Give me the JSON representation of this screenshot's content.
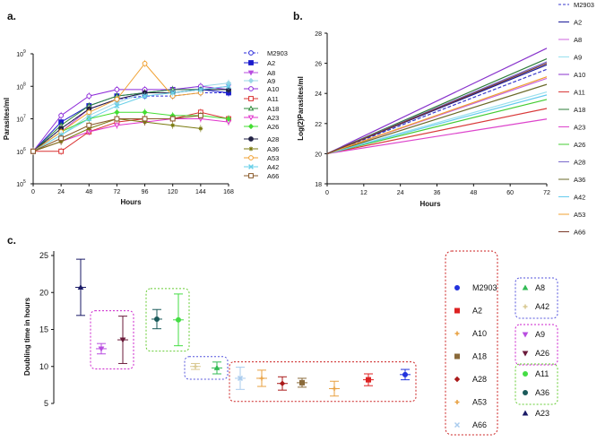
{
  "chart_data": [
    {
      "panel": "a.",
      "type": "line",
      "title": "",
      "xlabel": "Hours",
      "ylabel": "Parasites/ml",
      "x": [
        0,
        24,
        48,
        72,
        96,
        120,
        144,
        168
      ],
      "x_ticks": [
        "0",
        "24",
        "48",
        "72",
        "96",
        "120",
        "144",
        "168"
      ],
      "y_scale": "log10",
      "ylim": [
        5,
        9
      ],
      "y_ticks": [
        {
          "base": "10",
          "exp": "5",
          "v": 5
        },
        {
          "base": "10",
          "exp": "6",
          "v": 6
        },
        {
          "base": "10",
          "exp": "7",
          "v": 7
        },
        {
          "base": "10",
          "exp": "8",
          "v": 8
        },
        {
          "base": "10",
          "exp": "9",
          "v": 9
        }
      ],
      "series": [
        {
          "name": "M2903",
          "color": "#2b2bd9",
          "marker": "circle-open",
          "dashed": true,
          "values": [
            6.0,
            6.7,
            7.3,
            7.6,
            7.7,
            7.7,
            7.8,
            7.8
          ]
        },
        {
          "name": "A2",
          "color": "#1a1acc",
          "marker": "square",
          "values": [
            6.0,
            6.9,
            7.4,
            7.7,
            7.8,
            7.9,
            7.9,
            7.8
          ]
        },
        {
          "name": "A8",
          "color": "#b84de0",
          "marker": "triangle-down",
          "values": [
            6.0,
            6.6,
            7.3,
            7.6,
            7.8,
            7.9,
            7.9,
            8.0
          ]
        },
        {
          "name": "A9",
          "color": "#9ad7e6",
          "marker": "diamond",
          "values": [
            6.0,
            6.5,
            7.1,
            7.5,
            7.8,
            7.9,
            8.0,
            8.1
          ]
        },
        {
          "name": "A10",
          "color": "#8e2bd9",
          "marker": "circle-open",
          "values": [
            6.0,
            7.1,
            7.7,
            7.9,
            7.9,
            7.9,
            8.0,
            7.9
          ]
        },
        {
          "name": "A11",
          "color": "#d93030",
          "marker": "square-open",
          "values": [
            6.0,
            6.0,
            6.6,
            6.9,
            7.0,
            7.0,
            7.2,
            7.0
          ]
        },
        {
          "name": "A18",
          "color": "#2e8b3a",
          "marker": "triangle-open",
          "values": [
            6.0,
            6.8,
            7.4,
            7.7,
            7.8,
            7.9,
            7.9,
            7.9
          ]
        },
        {
          "name": "A23",
          "color": "#e033cc",
          "marker": "triangle-down-open",
          "values": [
            6.0,
            6.3,
            6.6,
            6.8,
            6.9,
            7.0,
            7.0,
            6.9
          ]
        },
        {
          "name": "A26",
          "color": "#44dd33",
          "marker": "diamond",
          "values": [
            6.0,
            6.6,
            7.0,
            7.2,
            7.2,
            7.1,
            7.1,
            7.0
          ]
        },
        {
          "name": "A28",
          "color": "#222244",
          "marker": "circle",
          "values": [
            6.0,
            6.7,
            7.3,
            7.6,
            7.8,
            7.8,
            7.9,
            7.9
          ]
        },
        {
          "name": "A36",
          "color": "#7a7a10",
          "marker": "star",
          "values": [
            6.0,
            6.3,
            6.7,
            7.0,
            6.9,
            6.8,
            6.7,
            null
          ]
        },
        {
          "name": "A53",
          "color": "#f0a030",
          "marker": "circle-open",
          "values": [
            6.0,
            6.6,
            7.2,
            7.6,
            8.7,
            7.7,
            7.8,
            null
          ]
        },
        {
          "name": "A42",
          "color": "#6ad0e8",
          "marker": "x",
          "values": [
            6.0,
            6.5,
            7.0,
            7.4,
            7.7,
            7.8,
            7.9,
            8.0
          ]
        },
        {
          "name": "A66",
          "color": "#8a5a2a",
          "marker": "square-open",
          "values": [
            6.0,
            6.4,
            6.8,
            7.0,
            7.0,
            7.0,
            7.1,
            null
          ]
        }
      ]
    },
    {
      "panel": "b.",
      "type": "line",
      "xlabel": "Hours",
      "ylabel": "Log(2)Parasites/ml",
      "xlim": [
        0,
        72
      ],
      "ylim": [
        18,
        28
      ],
      "x_ticks": [
        0,
        12,
        24,
        36,
        48,
        60,
        72
      ],
      "y_ticks": [
        18,
        20,
        22,
        24,
        26,
        28
      ],
      "series": [
        {
          "name": "M2903",
          "color": "#3a3acc",
          "dashed": true,
          "start": 20,
          "end": 25.6
        },
        {
          "name": "A2",
          "color": "#1a1a99",
          "start": 20,
          "end": 25.9
        },
        {
          "name": "A8",
          "color": "#cc66dd",
          "start": 20,
          "end": 25.0
        },
        {
          "name": "A9",
          "color": "#99e0ee",
          "start": 20,
          "end": 24.1
        },
        {
          "name": "A10",
          "color": "#8833cc",
          "start": 20,
          "end": 27.0
        },
        {
          "name": "A11",
          "color": "#d93a3a",
          "start": 20,
          "end": 23.0
        },
        {
          "name": "A18",
          "color": "#2e7d3a",
          "start": 20,
          "end": 26.3
        },
        {
          "name": "A23",
          "color": "#dd44cc",
          "start": 20,
          "end": 22.3
        },
        {
          "name": "A26",
          "color": "#44cc33",
          "start": 20,
          "end": 23.6
        },
        {
          "name": "A28",
          "color": "#7a6acc",
          "start": 20,
          "end": 26.1
        },
        {
          "name": "A36",
          "color": "#6a6a2a",
          "start": 20,
          "end": 24.6
        },
        {
          "name": "A42",
          "color": "#66ccee",
          "start": 20,
          "end": 23.9
        },
        {
          "name": "A53",
          "color": "#f0a030",
          "start": 20,
          "end": 25.1
        },
        {
          "name": "A66",
          "color": "#7a3a2a",
          "start": 20,
          "end": 26.0
        }
      ]
    },
    {
      "panel": "c.",
      "type": "scatter",
      "ylabel": "Doubling time in hours",
      "ylim": [
        5,
        25
      ],
      "y_ticks": [
        5,
        10,
        15,
        20,
        25
      ],
      "points": [
        {
          "name": "A23",
          "color": "#1a1a66",
          "shape": "triangle",
          "y": 20.7,
          "err": 3.8,
          "slot": 0
        },
        {
          "name": "A9",
          "color": "#b84de0",
          "shape": "triangle-down",
          "y": 12.4,
          "err": 0.7,
          "slot": 1
        },
        {
          "name": "A26",
          "color": "#6a1a3a",
          "shape": "triangle-down",
          "y": 13.6,
          "err": 3.2,
          "slot": 2
        },
        {
          "name": "A36",
          "color": "#1a5a5a",
          "shape": "circle",
          "y": 16.4,
          "err": 1.3,
          "slot": 3
        },
        {
          "name": "A11",
          "color": "#44dd44",
          "shape": "circle",
          "y": 16.3,
          "err": 3.5,
          "slot": 4
        },
        {
          "name": "A42",
          "color": "#d8c890",
          "shape": "plus",
          "y": 10.0,
          "err": 0.4,
          "slot": 5
        },
        {
          "name": "A8",
          "color": "#33bb55",
          "shape": "triangle",
          "y": 9.8,
          "err": 0.8,
          "slot": 6
        },
        {
          "name": "A66",
          "color": "#aaccee",
          "shape": "x",
          "y": 8.4,
          "err": 1.5,
          "slot": 7
        },
        {
          "name": "A53",
          "color": "#e8a040",
          "shape": "plus",
          "y": 8.4,
          "err": 1.1,
          "slot": 8
        },
        {
          "name": "A28",
          "color": "#aa1a1a",
          "shape": "diamond",
          "y": 7.7,
          "err": 0.9,
          "slot": 9
        },
        {
          "name": "A18",
          "color": "#8a6a3a",
          "shape": "square",
          "y": 7.8,
          "err": 0.6,
          "slot": 10
        },
        {
          "name": "A10",
          "color": "#e8a040",
          "shape": "plus",
          "y": 7.0,
          "err": 1.0,
          "slot": 11
        },
        {
          "name": "A2",
          "color": "#dd2222",
          "shape": "square",
          "y": 8.2,
          "err": 0.8,
          "slot": 12
        },
        {
          "name": "M2903",
          "color": "#2233dd",
          "shape": "circle",
          "y": 8.9,
          "err": 0.7,
          "slot": 13
        }
      ],
      "groups": [
        {
          "color": "#cc22cc",
          "slots": [
            1,
            2
          ]
        },
        {
          "color": "#66cc33",
          "slots": [
            3,
            4
          ]
        },
        {
          "color": "#5555dd",
          "slots": [
            5,
            6
          ]
        },
        {
          "color": "#cc2222",
          "slots": [
            7,
            13
          ]
        }
      ],
      "legend_red": [
        {
          "name": "M2903",
          "color": "#2233dd",
          "shape": "circle"
        },
        {
          "name": "A2",
          "color": "#dd2222",
          "shape": "square"
        },
        {
          "name": "A10",
          "color": "#e8a040",
          "shape": "plus"
        },
        {
          "name": "A18",
          "color": "#8a6a3a",
          "shape": "square"
        },
        {
          "name": "A28",
          "color": "#aa1a1a",
          "shape": "diamond"
        },
        {
          "name": "A53",
          "color": "#e8a040",
          "shape": "plus"
        },
        {
          "name": "A66",
          "color": "#aaccee",
          "shape": "x"
        }
      ],
      "legend_right": [
        {
          "box": "#5555dd",
          "items": [
            {
              "name": "A8",
              "color": "#33bb55",
              "shape": "triangle"
            },
            {
              "name": "A42",
              "color": "#d8c890",
              "shape": "plus"
            }
          ]
        },
        {
          "box": "#cc22cc",
          "items": [
            {
              "name": "A9",
              "color": "#b84de0",
              "shape": "triangle-down"
            },
            {
              "name": "A26",
              "color": "#6a1a3a",
              "shape": "triangle-down"
            }
          ]
        },
        {
          "box": "#66cc33",
          "items": [
            {
              "name": "A11",
              "color": "#44dd44",
              "shape": "circle"
            },
            {
              "name": "A36",
              "color": "#1a5a5a",
              "shape": "circle"
            }
          ]
        },
        {
          "box": null,
          "items": [
            {
              "name": "A23",
              "color": "#1a1a66",
              "shape": "triangle"
            }
          ]
        }
      ]
    }
  ]
}
